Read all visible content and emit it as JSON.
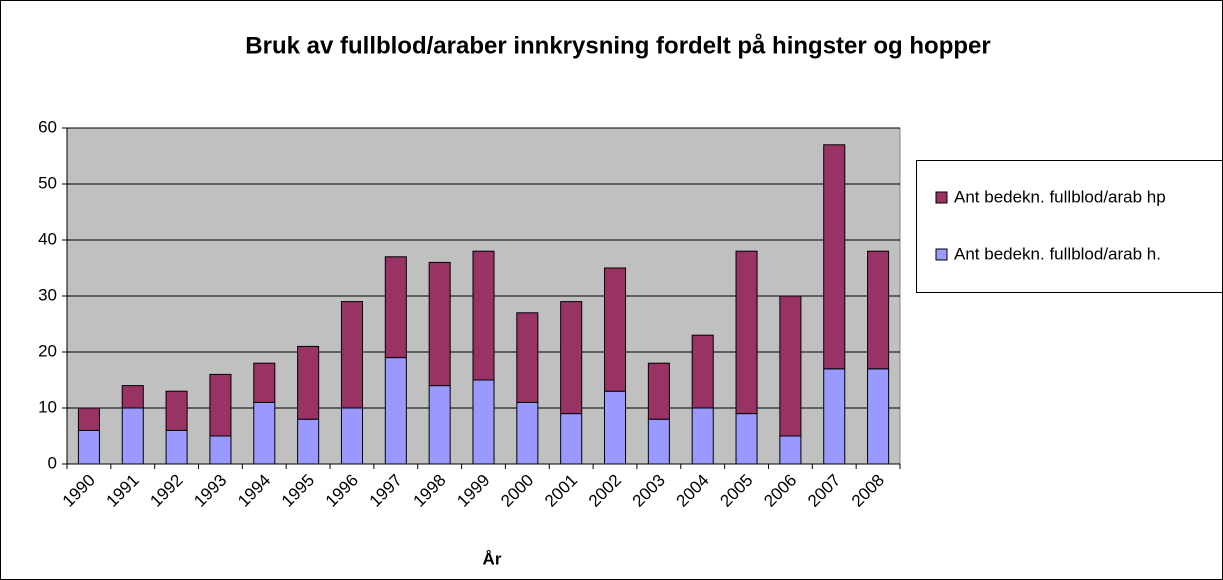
{
  "chart_data": {
    "type": "stacked_bar",
    "title": "Bruk av fullblod/araber innkrysning fordelt på hingster og hopper",
    "x_label": "År",
    "categories": [
      "1990",
      "1991",
      "1992",
      "1993",
      "1994",
      "1995",
      "1996",
      "1997",
      "1998",
      "1999",
      "2000",
      "2001",
      "2002",
      "2003",
      "2004",
      "2005",
      "2006",
      "2007",
      "2008"
    ],
    "series": [
      {
        "name": "Ant bedekn. fullblod/arab h.",
        "color": "#9999ff",
        "values": [
          6,
          10,
          6,
          5,
          11,
          8,
          10,
          19,
          14,
          15,
          11,
          9,
          13,
          8,
          10,
          9,
          5,
          17,
          17
        ]
      },
      {
        "name": "Ant bedekn. fullblod/arab hp",
        "color": "#993366",
        "values": [
          4,
          4,
          7,
          11,
          7,
          13,
          19,
          18,
          22,
          23,
          16,
          20,
          22,
          10,
          13,
          29,
          25,
          40,
          21
        ]
      }
    ],
    "ylim": [
      0,
      60
    ],
    "yticks": [
      0,
      10,
      20,
      30,
      40,
      50,
      60
    ],
    "grid": true,
    "legend": "right"
  }
}
